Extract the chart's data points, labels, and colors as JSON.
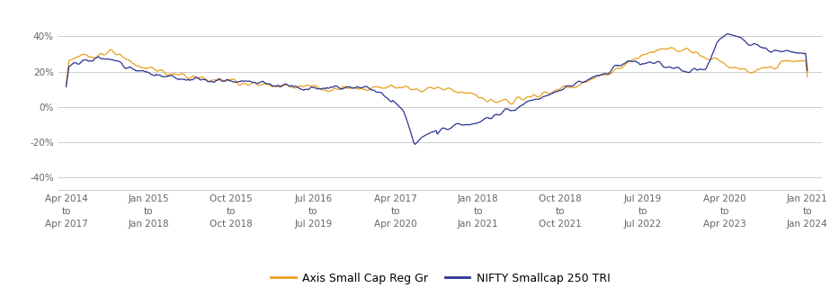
{
  "x_tick_labels": [
    "Apr 2014\nto\nApr 2017",
    "Jan 2015\nto\nJan 2018",
    "Oct 2015\nto\nOct 2018",
    "Jul 2016\nto\nJul 2019",
    "Apr 2017\nto\nApr 2020",
    "Jan 2018\nto\nJan 2021",
    "Oct 2018\nto\nOct 2021",
    "Jul 2019\nto\nJul 2022",
    "Apr 2020\nto\nApr 2023",
    "Jan 2021\nto\nJan 2024"
  ],
  "y_ticks": [
    -40,
    -20,
    0,
    20,
    40
  ],
  "y_tick_labels": [
    "-40%",
    "-20%",
    "0%",
    "20%",
    "40%"
  ],
  "ylim": [
    -47,
    52
  ],
  "orange_color": "#E8A020",
  "blue_color": "#2B3590",
  "legend_label_orange": "Axis Small Cap Reg Gr",
  "legend_label_blue": "NIFTY Smallcap 250 TRI",
  "background_color": "#ffffff",
  "grid_color": "#cccccc",
  "font_size_ticks": 7.5,
  "font_size_legend": 9,
  "orange_waypoints_x": [
    0,
    0.03,
    0.06,
    0.1,
    0.14,
    0.18,
    0.22,
    0.26,
    0.3,
    0.34,
    0.38,
    0.42,
    0.44,
    0.46,
    0.48,
    0.5,
    0.52,
    0.54,
    0.58,
    0.62,
    0.66,
    0.7,
    0.74,
    0.76,
    0.78,
    0.8,
    0.82,
    0.84,
    0.86,
    0.88,
    0.9,
    0.92,
    0.94,
    0.96,
    0.98,
    1.0
  ],
  "orange_waypoints_y": [
    27,
    29,
    31,
    23,
    19,
    16,
    15,
    13,
    12,
    11,
    10,
    11,
    12,
    11,
    10,
    11,
    10,
    8,
    2,
    5,
    9,
    14,
    20,
    25,
    30,
    33,
    33,
    31,
    28,
    26,
    22,
    20,
    21,
    26,
    27,
    26
  ],
  "blue_waypoints_x": [
    0,
    0.02,
    0.05,
    0.09,
    0.13,
    0.17,
    0.21,
    0.25,
    0.29,
    0.33,
    0.37,
    0.4,
    0.42,
    0.44,
    0.455,
    0.46,
    0.465,
    0.47,
    0.48,
    0.5,
    0.52,
    0.54,
    0.58,
    0.62,
    0.66,
    0.7,
    0.74,
    0.76,
    0.78,
    0.8,
    0.82,
    0.84,
    0.86,
    0.88,
    0.9,
    0.92,
    0.94,
    0.96,
    0.98,
    1.0
  ],
  "blue_waypoints_y": [
    22,
    26,
    29,
    21,
    18,
    16,
    15,
    14,
    12,
    11,
    10,
    11,
    8,
    4,
    -2,
    -8,
    -15,
    -22,
    -17,
    -13,
    -12,
    -10,
    -5,
    2,
    8,
    15,
    22,
    26,
    26,
    24,
    21,
    20,
    20,
    38,
    42,
    36,
    33,
    32,
    31,
    30
  ]
}
